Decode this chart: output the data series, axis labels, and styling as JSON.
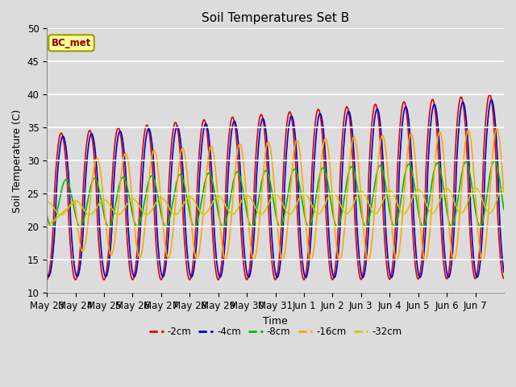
{
  "title": "Soil Temperatures Set B",
  "xlabel": "Time",
  "ylabel": "Soil Temperature (C)",
  "ylim": [
    10,
    50
  ],
  "annotation": "BC_met",
  "series_labels": [
    "-2cm",
    "-4cm",
    "-8cm",
    "-16cm",
    "-32cm"
  ],
  "series_colors": [
    "#DD0000",
    "#0000CC",
    "#00BB00",
    "#FFA500",
    "#CCCC00"
  ],
  "x_tick_labels": [
    "May 23",
    "May 24",
    "May 25",
    "May 26",
    "May 27",
    "May 28",
    "May 29",
    "May 30",
    "May 31",
    "Jun 1",
    "Jun 2",
    "Jun 3",
    "Jun 4",
    "Jun 5",
    "Jun 6",
    "Jun 7"
  ],
  "bg_color": "#DCDCDC",
  "plot_bg_color": "#DCDCDC",
  "grid_color": "#FFFFFF"
}
